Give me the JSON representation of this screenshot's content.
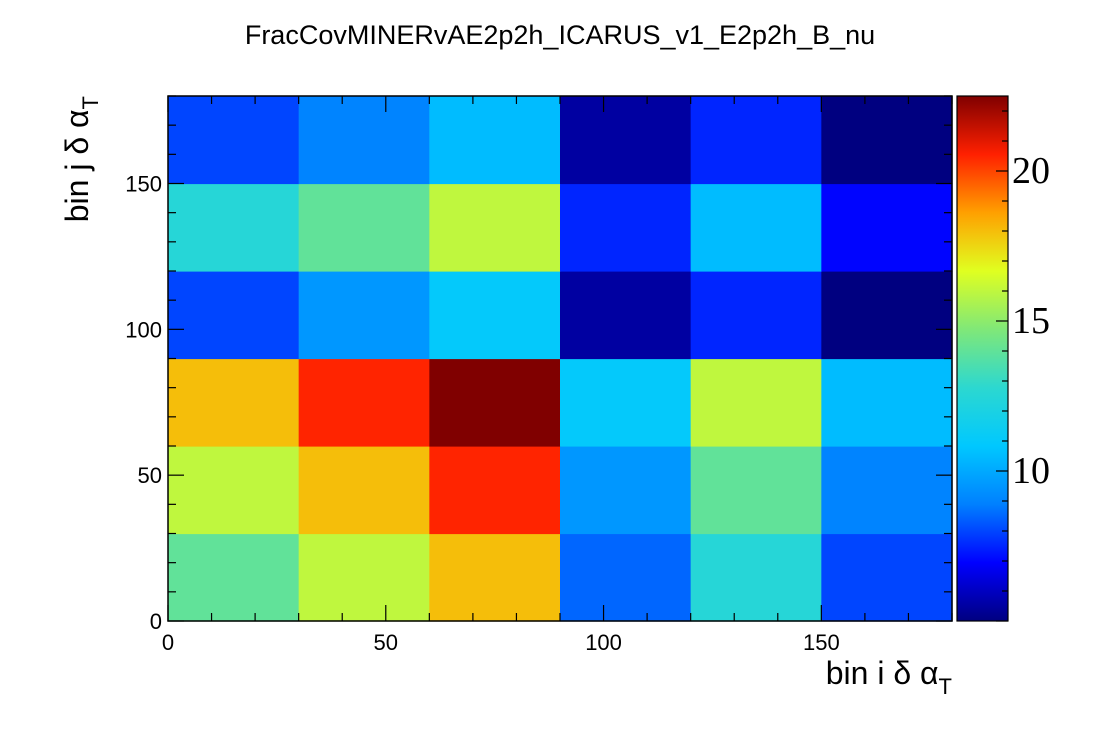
{
  "chart_data": {
    "type": "heatmap",
    "title": "FracCovMINERvAE2p2h_ICARUS_v1_E2p2h_B_nu",
    "xlabel": {
      "main": "bin i δ α",
      "sub": "T"
    },
    "ylabel": {
      "main": "bin j δ α",
      "sub": "T"
    },
    "x_edges": [
      0,
      30,
      60,
      90,
      120,
      150,
      180
    ],
    "y_edges": [
      0,
      30,
      60,
      90,
      120,
      150,
      180
    ],
    "xlim": [
      0,
      180
    ],
    "ylim": [
      0,
      180
    ],
    "x_ticks": [
      0,
      50,
      100,
      150
    ],
    "y_ticks": [
      0,
      50,
      100,
      150
    ],
    "z_range": [
      5,
      22.5
    ],
    "colorbar_ticks": [
      10,
      15,
      20
    ],
    "z_rows_bottom_to_top": [
      [
        14.0,
        16.0,
        18.0,
        8.5,
        12.5,
        8.0
      ],
      [
        16.0,
        18.0,
        20.5,
        9.5,
        14.0,
        9.0
      ],
      [
        18.0,
        20.5,
        22.5,
        11.0,
        16.0,
        10.5
      ],
      [
        8.0,
        9.5,
        11.0,
        5.5,
        7.5,
        5.0
      ],
      [
        12.5,
        14.0,
        16.0,
        7.5,
        10.5,
        7.0
      ],
      [
        8.0,
        9.0,
        10.5,
        5.5,
        7.5,
        5.0
      ]
    ],
    "grid": false,
    "legend": "none",
    "colormap": [
      "#000080",
      "#0000ff",
      "#0080ff",
      "#00c8ff",
      "#2cd8d0",
      "#80e878",
      "#e0ff20",
      "#ffa000",
      "#ff2000",
      "#800000"
    ]
  }
}
